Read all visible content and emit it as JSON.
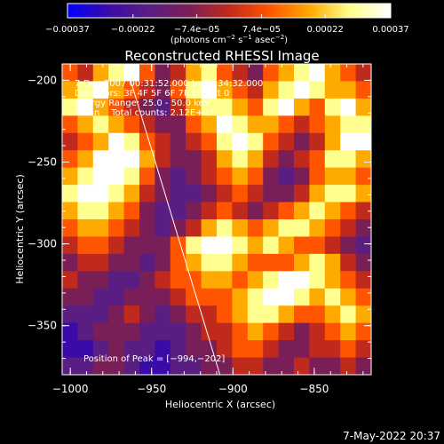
{
  "chart_data": {
    "type": "heatmap",
    "title": "Reconstructed RHESSI Image",
    "xlabel": "Heliocentric X (arcsec)",
    "ylabel": "Heliocentric Y (arcsec)",
    "xlim": [
      -1005,
      -815
    ],
    "ylim": [
      -380,
      -190
    ],
    "x_ticks": [
      -1000,
      -950,
      -900,
      -850
    ],
    "x_tick_labels": [
      "−1000",
      "−950",
      "−900",
      "−850"
    ],
    "y_ticks": [
      -200,
      -250,
      -300,
      -350
    ],
    "y_tick_labels": [
      "−200",
      "−250",
      "−300",
      "−350"
    ],
    "colorbar": {
      "range": [
        -0.00037,
        0.00037
      ],
      "ticks": [
        -0.00037,
        -0.00022,
        -7.4e-05,
        7.4e-05,
        0.00022,
        0.00037
      ],
      "tick_labels": [
        "−0.00037",
        "−0.00022",
        "−7.4e−05",
        "7.4e−05",
        "0.00022",
        "0.00037"
      ],
      "units_main": "(photons cm",
      "units_exp1": "−2",
      "units_mid1": " s",
      "units_exp2": "−1",
      "units_mid2": " asec",
      "units_exp3": "−2",
      "units_end": ")",
      "colors": [
        "#0000ff",
        "#3a0ba8",
        "#5a1e82",
        "#7a1e58",
        "#c02a1c",
        "#ff5500",
        "#ffaa00",
        "#ffff90",
        "#ffffff"
      ]
    },
    "annotations": [
      "7-Dec-2007 00:31:52.000 to 00:34:32.000",
      "Detectors: 3F 4F 5F 6F 7F 8F, Att 0",
      "Energy Range: 25.0 - 50.0 keV",
      "Clean    Total counts: 2.12E+03"
    ],
    "peak_label": "Position of Peak = [−994,−202]",
    "peak_position": [
      -994,
      -202
    ],
    "limb_line": [
      [
        -966,
        -190
      ],
      [
        -908,
        -380
      ]
    ],
    "grid": [
      [
        5,
        4,
        6,
        7,
        8,
        5,
        3,
        4,
        6,
        7,
        5,
        4,
        3,
        5,
        6,
        7,
        8,
        6,
        5,
        4
      ],
      [
        6,
        7,
        8,
        6,
        5,
        4,
        3,
        5,
        7,
        8,
        6,
        5,
        4,
        6,
        7,
        8,
        7,
        6,
        6,
        5
      ],
      [
        7,
        8,
        6,
        5,
        4,
        3,
        2,
        4,
        6,
        7,
        7,
        6,
        5,
        7,
        8,
        6,
        5,
        7,
        8,
        6
      ],
      [
        5,
        6,
        7,
        6,
        5,
        4,
        3,
        3,
        5,
        6,
        8,
        7,
        6,
        6,
        5,
        4,
        5,
        6,
        7,
        7
      ],
      [
        4,
        5,
        6,
        8,
        7,
        5,
        4,
        3,
        4,
        5,
        7,
        8,
        7,
        5,
        4,
        3,
        4,
        6,
        8,
        8
      ],
      [
        5,
        6,
        8,
        9,
        8,
        6,
        4,
        3,
        3,
        4,
        6,
        7,
        6,
        4,
        3,
        4,
        5,
        7,
        7,
        6
      ],
      [
        6,
        7,
        8,
        8,
        7,
        5,
        3,
        2,
        3,
        4,
        5,
        6,
        5,
        3,
        2,
        3,
        5,
        6,
        6,
        5
      ],
      [
        7,
        8,
        9,
        7,
        6,
        4,
        3,
        2,
        2,
        3,
        4,
        5,
        4,
        3,
        3,
        4,
        6,
        7,
        7,
        6
      ],
      [
        6,
        7,
        7,
        6,
        5,
        3,
        2,
        2,
        3,
        4,
        5,
        4,
        3,
        4,
        5,
        6,
        7,
        6,
        5,
        4
      ],
      [
        5,
        6,
        6,
        5,
        4,
        3,
        2,
        3,
        4,
        6,
        7,
        6,
        5,
        6,
        7,
        7,
        6,
        5,
        4,
        3
      ],
      [
        4,
        5,
        5,
        4,
        3,
        3,
        3,
        5,
        7,
        8,
        8,
        7,
        6,
        7,
        6,
        5,
        5,
        4,
        3,
        2
      ],
      [
        3,
        4,
        4,
        3,
        3,
        2,
        3,
        5,
        6,
        7,
        7,
        6,
        5,
        5,
        5,
        6,
        7,
        6,
        4,
        3
      ],
      [
        4,
        3,
        3,
        2,
        2,
        3,
        4,
        5,
        5,
        6,
        6,
        5,
        6,
        7,
        8,
        8,
        7,
        6,
        5,
        4
      ],
      [
        3,
        3,
        2,
        2,
        3,
        3,
        3,
        4,
        5,
        5,
        5,
        6,
        7,
        8,
        8,
        7,
        6,
        7,
        6,
        5
      ],
      [
        2,
        2,
        2,
        3,
        4,
        3,
        2,
        3,
        4,
        4,
        5,
        6,
        7,
        7,
        6,
        5,
        5,
        6,
        7,
        6
      ],
      [
        1,
        2,
        3,
        3,
        3,
        2,
        2,
        2,
        3,
        4,
        4,
        5,
        6,
        5,
        4,
        3,
        4,
        5,
        6,
        5
      ],
      [
        1,
        1,
        2,
        3,
        2,
        2,
        1,
        2,
        3,
        3,
        4,
        5,
        5,
        4,
        3,
        3,
        4,
        4,
        5,
        4
      ],
      [
        2,
        2,
        3,
        3,
        2,
        1,
        1,
        2,
        2,
        3,
        3,
        4,
        4,
        3,
        3,
        4,
        3,
        3,
        4,
        3
      ]
    ]
  },
  "timestamp": "7-May-2022 20:37"
}
